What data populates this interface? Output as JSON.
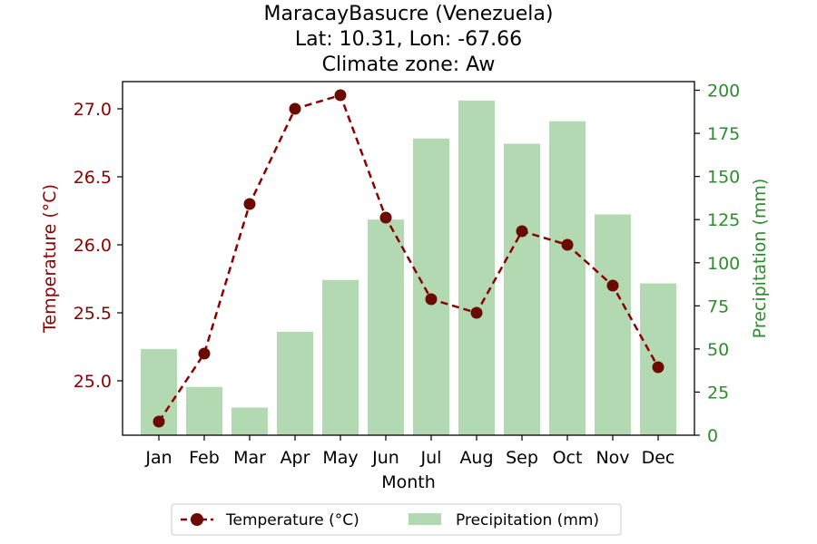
{
  "chart_data": {
    "type": "bar+line",
    "title_lines": [
      "MaracayBasucre (Venezuela)",
      "Lat: 10.31, Lon: -67.66",
      "Climate zone: Aw"
    ],
    "xlabel": "Month",
    "categories": [
      "Jan",
      "Feb",
      "Mar",
      "Apr",
      "May",
      "Jun",
      "Jul",
      "Aug",
      "Sep",
      "Oct",
      "Nov",
      "Dec"
    ],
    "temperature": {
      "name": "Temperature (°C)",
      "axis_label": "Temperature (°C)",
      "values": [
        24.7,
        25.2,
        26.3,
        27.0,
        27.1,
        26.2,
        25.6,
        25.5,
        26.1,
        26.0,
        25.7,
        25.1
      ],
      "ylim": [
        24.6,
        27.2
      ],
      "ticks": [
        25.0,
        25.5,
        26.0,
        26.5,
        27.0
      ],
      "color": "#8b0000",
      "style": "dashed-with-circle-markers"
    },
    "precipitation": {
      "name": "Precipitation (mm)",
      "axis_label": "Precipitation (mm)",
      "values": [
        50,
        28,
        16,
        60,
        90,
        125,
        172,
        194,
        169,
        182,
        128,
        88
      ],
      "ylim": [
        0,
        205
      ],
      "ticks": [
        0,
        25,
        50,
        75,
        100,
        125,
        150,
        175,
        200
      ],
      "color": "#2e8b2e",
      "bar_color": "#b2d9b2"
    },
    "legend_position": "bottom-center",
    "grid": false
  }
}
